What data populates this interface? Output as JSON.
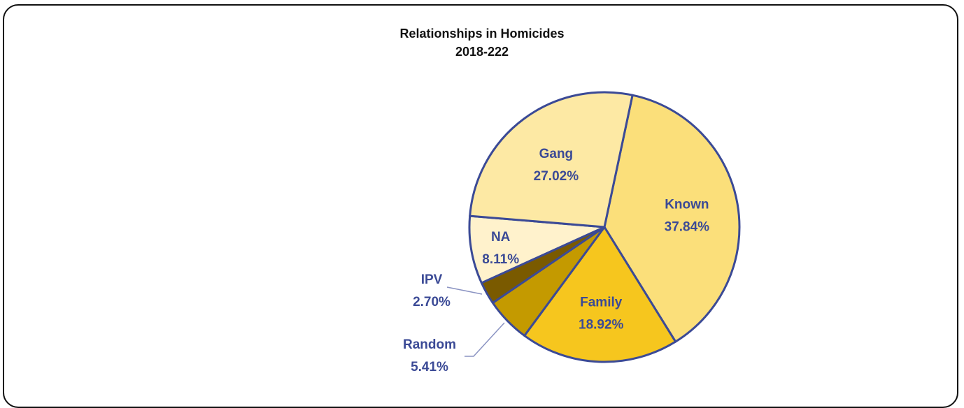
{
  "chart_data": {
    "type": "pie",
    "title": "Relationships in Homicides",
    "subtitle": "2018-222",
    "slices": [
      {
        "label": "Known",
        "value": 37.84,
        "display": "37.84%",
        "color": "#fbdf7a"
      },
      {
        "label": "Family",
        "value": 18.92,
        "display": "18.92%",
        "color": "#f6c61e"
      },
      {
        "label": "Random",
        "value": 5.41,
        "display": "5.41%",
        "color": "#c49a00"
      },
      {
        "label": "IPV",
        "value": 2.7,
        "display": "2.70%",
        "color": "#7a5a00"
      },
      {
        "label": "NA",
        "value": 8.11,
        "display": "8.11%",
        "color": "#fff2cc"
      },
      {
        "label": "Gang",
        "value": 27.02,
        "display": "27.02%",
        "color": "#fde9a4"
      }
    ],
    "edge_color": "#3b4a96",
    "label_color": "#3b4a96"
  }
}
